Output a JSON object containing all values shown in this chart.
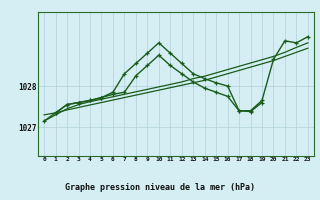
{
  "bg_color": "#d4eef4",
  "grid_color": "#b0d0d8",
  "line_color": "#1a5c1a",
  "title": "Graphe pression niveau de la mer (hPa)",
  "ylim": [
    1026.3,
    1029.8
  ],
  "xlim": [
    -0.5,
    23.5
  ],
  "yticks": [
    1027,
    1028
  ],
  "xticks": [
    0,
    1,
    2,
    3,
    4,
    5,
    6,
    7,
    8,
    9,
    10,
    11,
    12,
    13,
    14,
    15,
    16,
    17,
    18,
    19,
    20,
    21,
    22,
    23
  ],
  "s1_x": [
    0,
    1,
    2,
    3,
    4,
    5,
    6,
    7,
    8,
    9,
    10,
    11,
    12,
    13,
    14,
    15,
    16,
    17,
    18,
    19,
    20,
    21,
    22,
    23
  ],
  "s1_y": [
    1027.15,
    1027.3,
    1027.45,
    1027.55,
    1027.62,
    1027.68,
    1027.74,
    1027.8,
    1027.86,
    1027.92,
    1027.98,
    1028.04,
    1028.1,
    1028.18,
    1028.24,
    1028.32,
    1028.4,
    1028.48,
    1028.56,
    1028.64,
    1028.72,
    1028.82,
    1028.94,
    1029.05
  ],
  "s2_x": [
    0,
    1,
    2,
    3,
    4,
    5,
    6,
    7,
    8,
    9,
    10,
    11,
    12,
    13,
    14,
    15,
    16,
    17,
    18,
    19,
    20,
    21,
    22,
    23
  ],
  "s2_y": [
    1027.3,
    1027.35,
    1027.42,
    1027.48,
    1027.54,
    1027.6,
    1027.66,
    1027.72,
    1027.78,
    1027.84,
    1027.9,
    1027.96,
    1028.02,
    1028.08,
    1028.14,
    1028.22,
    1028.3,
    1028.38,
    1028.46,
    1028.54,
    1028.62,
    1028.72,
    1028.82,
    1028.92
  ],
  "s3_x": [
    0,
    1,
    2,
    3,
    4,
    5,
    6,
    7,
    8,
    9,
    10,
    11,
    12,
    13,
    14,
    15,
    16,
    17,
    18,
    19,
    20,
    21,
    22,
    23
  ],
  "s3_y": [
    1027.15,
    1027.35,
    1027.55,
    1027.6,
    1027.65,
    1027.72,
    1027.85,
    1028.3,
    1028.55,
    1028.8,
    1029.05,
    1028.8,
    1028.55,
    1028.3,
    1028.18,
    1028.08,
    1028.0,
    1027.4,
    1027.4,
    1027.65,
    1028.65,
    1029.1,
    1029.05,
    1029.2
  ],
  "s4_x": [
    1,
    2,
    3,
    4,
    5,
    6,
    7,
    8,
    9,
    10,
    11,
    12,
    13,
    14,
    15,
    16,
    17,
    18,
    19
  ],
  "s4_y": [
    1027.35,
    1027.55,
    1027.6,
    1027.65,
    1027.72,
    1027.8,
    1027.85,
    1028.25,
    1028.5,
    1028.75,
    1028.5,
    1028.3,
    1028.1,
    1027.95,
    1027.85,
    1027.75,
    1027.4,
    1027.38,
    1027.6
  ]
}
